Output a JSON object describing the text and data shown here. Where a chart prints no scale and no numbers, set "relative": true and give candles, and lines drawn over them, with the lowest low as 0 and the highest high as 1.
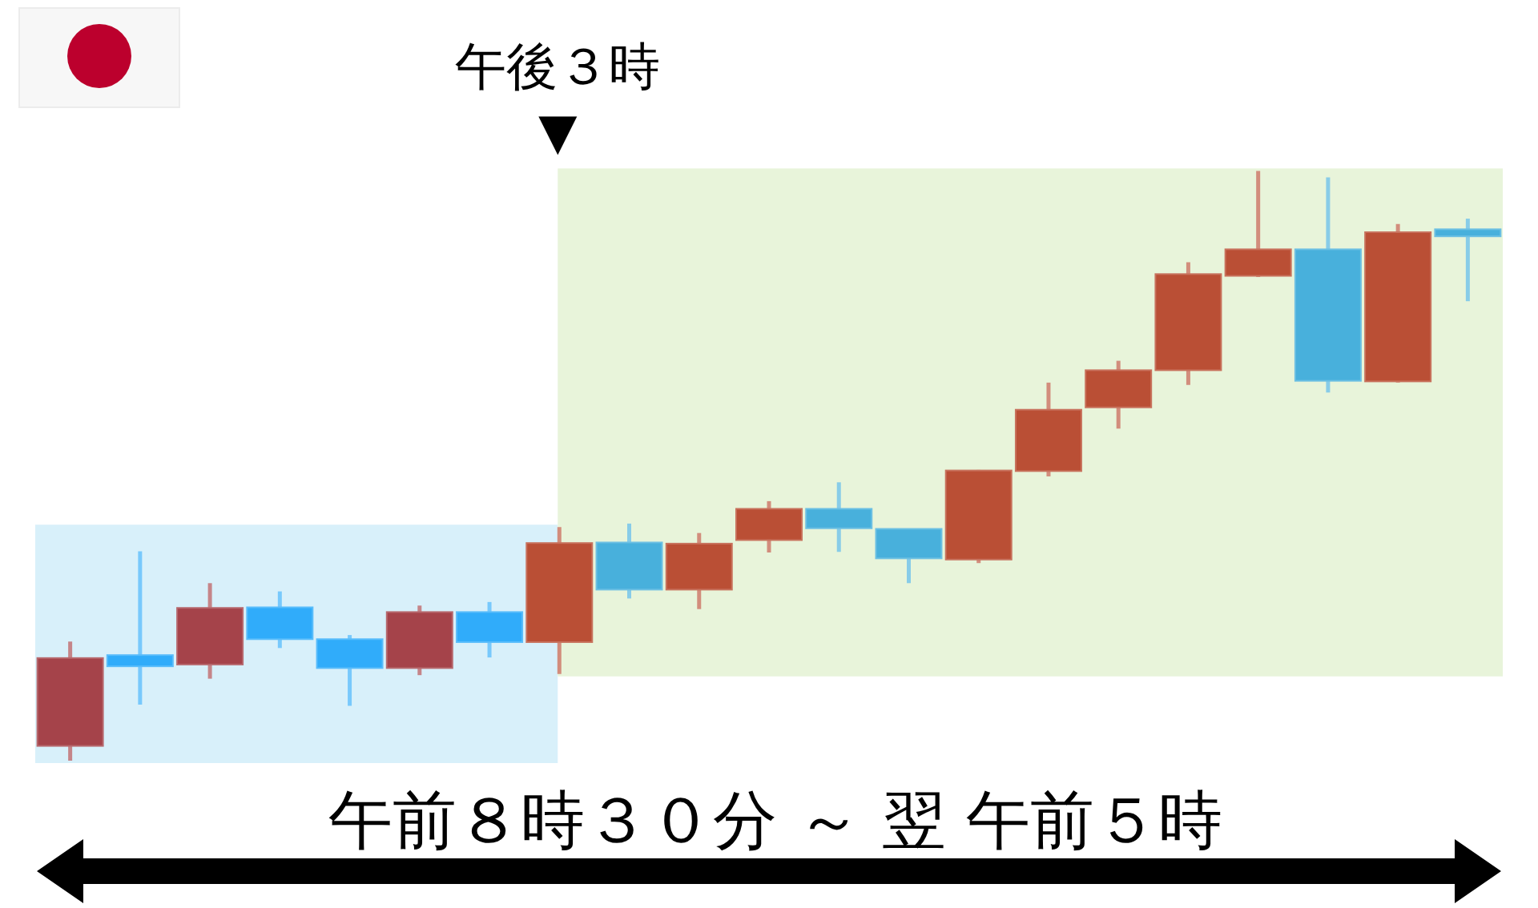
{
  "chart_data": {
    "type": "candlestick",
    "relative": true,
    "categories": [
      null,
      null,
      null,
      null,
      null,
      null,
      null,
      null,
      null,
      null,
      null,
      null,
      null,
      null,
      null,
      null,
      null,
      null,
      null,
      null,
      null
    ],
    "ohlc": [
      [
        0.025,
        0.202,
        0,
        0.174
      ],
      [
        0.179,
        0.355,
        0.095,
        0.16
      ],
      [
        0.163,
        0.301,
        0.139,
        0.259
      ],
      [
        0.26,
        0.287,
        0.191,
        0.206
      ],
      [
        0.206,
        0.213,
        0.093,
        0.157
      ],
      [
        0.157,
        0.263,
        0.145,
        0.252
      ],
      [
        0.252,
        0.269,
        0.175,
        0.201
      ],
      [
        0.201,
        0.396,
        0.147,
        0.369
      ],
      [
        0.37,
        0.402,
        0.275,
        0.29
      ],
      [
        0.29,
        0.386,
        0.257,
        0.368
      ],
      [
        0.374,
        0.44,
        0.353,
        0.427
      ],
      [
        0.427,
        0.472,
        0.354,
        0.394
      ],
      [
        0.393,
        0.393,
        0.301,
        0.343
      ],
      [
        0.341,
        0.493,
        0.335,
        0.492
      ],
      [
        0.491,
        0.641,
        0.482,
        0.595
      ],
      [
        0.599,
        0.678,
        0.563,
        0.662
      ],
      [
        0.662,
        0.845,
        0.637,
        0.825
      ],
      [
        0.822,
        1,
        0.82,
        0.867
      ],
      [
        0.867,
        0.989,
        0.624,
        0.644
      ],
      [
        0.643,
        0.91,
        0.641,
        0.896
      ],
      [
        0.901,
        0.919,
        0.779,
        0.889
      ]
    ],
    "colors": [
      "#a5434a",
      "#30acfa",
      "#a5434a",
      "#30acfa",
      "#30acfa",
      "#a5434a",
      "#30acfa",
      "#ba4f35",
      "#48b0dc",
      "#ba4f35",
      "#ba4f35",
      "#48b0dc",
      "#48b0dc",
      "#ba4f35",
      "#ba4f35",
      "#ba4f35",
      "#ba4f35",
      "#ba4f35",
      "#48b0dc",
      "#ba4f35",
      "#48b0dc"
    ],
    "xlabel": "午前８時３０分 ～ 翌 午前５時",
    "annotations": [
      "午後３時"
    ]
  }
}
